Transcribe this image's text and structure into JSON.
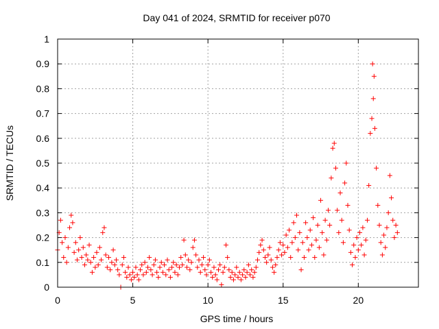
{
  "chart_data": {
    "type": "scatter",
    "title": "Day 041 of 2024, SRMTID for receiver p070",
    "xlabel": "GPS time / hours",
    "ylabel": "SRMTID / TECUs",
    "xlim": [
      0,
      24
    ],
    "ylim": [
      0,
      1
    ],
    "xticks": [
      0,
      5,
      10,
      15,
      20
    ],
    "xtick_labels": [
      "0",
      "5",
      "10",
      "15",
      "20"
    ],
    "yticks": [
      0,
      0.1,
      0.2,
      0.3,
      0.4,
      0.5,
      0.6,
      0.7,
      0.8,
      0.9,
      1
    ],
    "ytick_labels": [
      "0",
      "0.1",
      "0.2",
      "0.3",
      "0.4",
      "0.5",
      "0.6",
      "0.7",
      "0.8",
      "0.9",
      "1"
    ],
    "grid": true,
    "marker": "+",
    "color": "#ff0000",
    "series": [
      {
        "name": "SRMTID",
        "points": [
          [
            0.0,
            0.15
          ],
          [
            0.1,
            0.22
          ],
          [
            0.2,
            0.27
          ],
          [
            0.3,
            0.18
          ],
          [
            0.4,
            0.12
          ],
          [
            0.5,
            0.2
          ],
          [
            0.6,
            0.1
          ],
          [
            0.7,
            0.16
          ],
          [
            0.8,
            0.24
          ],
          [
            0.9,
            0.29
          ],
          [
            1.0,
            0.26
          ],
          [
            1.1,
            0.14
          ],
          [
            1.2,
            0.18
          ],
          [
            1.3,
            0.11
          ],
          [
            1.4,
            0.15
          ],
          [
            1.5,
            0.2
          ],
          [
            1.6,
            0.12
          ],
          [
            1.7,
            0.16
          ],
          [
            1.8,
            0.09
          ],
          [
            1.9,
            0.13
          ],
          [
            2.0,
            0.11
          ],
          [
            2.1,
            0.17
          ],
          [
            2.2,
            0.1
          ],
          [
            2.3,
            0.06
          ],
          [
            2.4,
            0.12
          ],
          [
            2.5,
            0.08
          ],
          [
            2.6,
            0.14
          ],
          [
            2.7,
            0.09
          ],
          [
            2.8,
            0.16
          ],
          [
            2.9,
            0.11
          ],
          [
            3.0,
            0.22
          ],
          [
            3.1,
            0.24
          ],
          [
            3.2,
            0.13
          ],
          [
            3.3,
            0.08
          ],
          [
            3.4,
            0.12
          ],
          [
            3.5,
            0.07
          ],
          [
            3.6,
            0.1
          ],
          [
            3.7,
            0.15
          ],
          [
            3.8,
            0.09
          ],
          [
            3.9,
            0.11
          ],
          [
            4.0,
            0.07
          ],
          [
            4.1,
            0.05
          ],
          [
            4.2,
            0.0
          ],
          [
            4.3,
            0.09
          ],
          [
            4.4,
            0.12
          ],
          [
            4.5,
            0.06
          ],
          [
            4.6,
            0.04
          ],
          [
            4.7,
            0.08
          ],
          [
            4.8,
            0.05
          ],
          [
            4.9,
            0.03
          ],
          [
            5.0,
            0.06
          ],
          [
            5.1,
            0.04
          ],
          [
            5.2,
            0.08
          ],
          [
            5.3,
            0.05
          ],
          [
            5.4,
            0.03
          ],
          [
            5.5,
            0.07
          ],
          [
            5.6,
            0.09
          ],
          [
            5.7,
            0.05
          ],
          [
            5.8,
            0.1
          ],
          [
            5.9,
            0.06
          ],
          [
            6.0,
            0.08
          ],
          [
            6.1,
            0.12
          ],
          [
            6.2,
            0.07
          ],
          [
            6.3,
            0.05
          ],
          [
            6.4,
            0.09
          ],
          [
            6.5,
            0.11
          ],
          [
            6.6,
            0.06
          ],
          [
            6.7,
            0.04
          ],
          [
            6.8,
            0.08
          ],
          [
            6.9,
            0.1
          ],
          [
            7.0,
            0.06
          ],
          [
            7.1,
            0.09
          ],
          [
            7.2,
            0.05
          ],
          [
            7.3,
            0.11
          ],
          [
            7.4,
            0.07
          ],
          [
            7.5,
            0.04
          ],
          [
            7.6,
            0.08
          ],
          [
            7.7,
            0.1
          ],
          [
            7.8,
            0.06
          ],
          [
            7.9,
            0.09
          ],
          [
            8.0,
            0.05
          ],
          [
            8.1,
            0.08
          ],
          [
            8.2,
            0.12
          ],
          [
            8.3,
            0.09
          ],
          [
            8.4,
            0.19
          ],
          [
            8.5,
            0.13
          ],
          [
            8.6,
            0.08
          ],
          [
            8.7,
            0.11
          ],
          [
            8.8,
            0.07
          ],
          [
            8.9,
            0.1
          ],
          [
            9.0,
            0.16
          ],
          [
            9.1,
            0.19
          ],
          [
            9.2,
            0.13
          ],
          [
            9.3,
            0.08
          ],
          [
            9.4,
            0.11
          ],
          [
            9.5,
            0.06
          ],
          [
            9.6,
            0.09
          ],
          [
            9.7,
            0.12
          ],
          [
            9.8,
            0.07
          ],
          [
            9.9,
            0.05
          ],
          [
            10.0,
            0.09
          ],
          [
            10.1,
            0.11
          ],
          [
            10.2,
            0.06
          ],
          [
            10.3,
            0.04
          ],
          [
            10.4,
            0.08
          ],
          [
            10.5,
            0.05
          ],
          [
            10.6,
            0.03
          ],
          [
            10.7,
            0.07
          ],
          [
            10.8,
            0.09
          ],
          [
            10.9,
            0.01
          ],
          [
            11.0,
            0.06
          ],
          [
            11.1,
            0.08
          ],
          [
            11.2,
            0.17
          ],
          [
            11.3,
            0.12
          ],
          [
            11.4,
            0.07
          ],
          [
            11.5,
            0.04
          ],
          [
            11.6,
            0.06
          ],
          [
            11.7,
            0.03
          ],
          [
            11.8,
            0.05
          ],
          [
            11.9,
            0.08
          ],
          [
            12.0,
            0.04
          ],
          [
            12.1,
            0.06
          ],
          [
            12.2,
            0.03
          ],
          [
            12.3,
            0.05
          ],
          [
            12.4,
            0.07
          ],
          [
            12.5,
            0.04
          ],
          [
            12.6,
            0.06
          ],
          [
            12.7,
            0.09
          ],
          [
            12.8,
            0.05
          ],
          [
            12.9,
            0.07
          ],
          [
            13.0,
            0.04
          ],
          [
            13.1,
            0.06
          ],
          [
            13.2,
            0.08
          ],
          [
            13.3,
            0.11
          ],
          [
            13.4,
            0.14
          ],
          [
            13.5,
            0.17
          ],
          [
            13.6,
            0.19
          ],
          [
            13.7,
            0.15
          ],
          [
            13.8,
            0.12
          ],
          [
            13.9,
            0.1
          ],
          [
            14.0,
            0.13
          ],
          [
            14.1,
            0.16
          ],
          [
            14.2,
            0.11
          ],
          [
            14.3,
            0.08
          ],
          [
            14.4,
            0.06
          ],
          [
            14.5,
            0.09
          ],
          [
            14.6,
            0.12
          ],
          [
            14.7,
            0.15
          ],
          [
            14.8,
            0.18
          ],
          [
            14.9,
            0.13
          ],
          [
            15.0,
            0.17
          ],
          [
            15.1,
            0.14
          ],
          [
            15.2,
            0.21
          ],
          [
            15.3,
            0.16
          ],
          [
            15.4,
            0.23
          ],
          [
            15.5,
            0.12
          ],
          [
            15.6,
            0.18
          ],
          [
            15.7,
            0.26
          ],
          [
            15.8,
            0.2
          ],
          [
            15.9,
            0.29
          ],
          [
            16.0,
            0.15
          ],
          [
            16.1,
            0.22
          ],
          [
            16.2,
            0.07
          ],
          [
            16.3,
            0.18
          ],
          [
            16.4,
            0.12
          ],
          [
            16.5,
            0.26
          ],
          [
            16.6,
            0.2
          ],
          [
            16.7,
            0.15
          ],
          [
            16.8,
            0.23
          ],
          [
            16.9,
            0.17
          ],
          [
            17.0,
            0.28
          ],
          [
            17.1,
            0.12
          ],
          [
            17.2,
            0.19
          ],
          [
            17.3,
            0.25
          ],
          [
            17.4,
            0.16
          ],
          [
            17.5,
            0.35
          ],
          [
            17.6,
            0.22
          ],
          [
            17.7,
            0.13
          ],
          [
            17.8,
            0.27
          ],
          [
            17.9,
            0.19
          ],
          [
            18.0,
            0.31
          ],
          [
            18.1,
            0.25
          ],
          [
            18.2,
            0.44
          ],
          [
            18.3,
            0.56
          ],
          [
            18.4,
            0.58
          ],
          [
            18.5,
            0.48
          ],
          [
            18.6,
            0.31
          ],
          [
            18.7,
            0.22
          ],
          [
            18.8,
            0.38
          ],
          [
            18.9,
            0.27
          ],
          [
            19.0,
            0.18
          ],
          [
            19.1,
            0.42
          ],
          [
            19.2,
            0.5
          ],
          [
            19.3,
            0.33
          ],
          [
            19.4,
            0.23
          ],
          [
            19.5,
            0.14
          ],
          [
            19.6,
            0.09
          ],
          [
            19.7,
            0.17
          ],
          [
            19.8,
            0.12
          ],
          [
            19.9,
            0.2
          ],
          [
            20.0,
            0.15
          ],
          [
            20.1,
            0.22
          ],
          [
            20.2,
            0.17
          ],
          [
            20.3,
            0.24
          ],
          [
            20.4,
            0.13
          ],
          [
            20.5,
            0.19
          ],
          [
            20.6,
            0.27
          ],
          [
            20.7,
            0.41
          ],
          [
            20.8,
            0.62
          ],
          [
            20.9,
            0.68
          ],
          [
            20.95,
            0.9
          ],
          [
            21.0,
            0.76
          ],
          [
            21.05,
            0.85
          ],
          [
            21.1,
            0.64
          ],
          [
            21.2,
            0.48
          ],
          [
            21.3,
            0.33
          ],
          [
            21.4,
            0.25
          ],
          [
            21.5,
            0.18
          ],
          [
            21.6,
            0.13
          ],
          [
            21.7,
            0.21
          ],
          [
            21.8,
            0.16
          ],
          [
            21.9,
            0.24
          ],
          [
            22.0,
            0.3
          ],
          [
            22.1,
            0.45
          ],
          [
            22.2,
            0.36
          ],
          [
            22.3,
            0.27
          ],
          [
            22.4,
            0.2
          ],
          [
            22.5,
            0.25
          ],
          [
            22.6,
            0.22
          ]
        ]
      }
    ]
  }
}
